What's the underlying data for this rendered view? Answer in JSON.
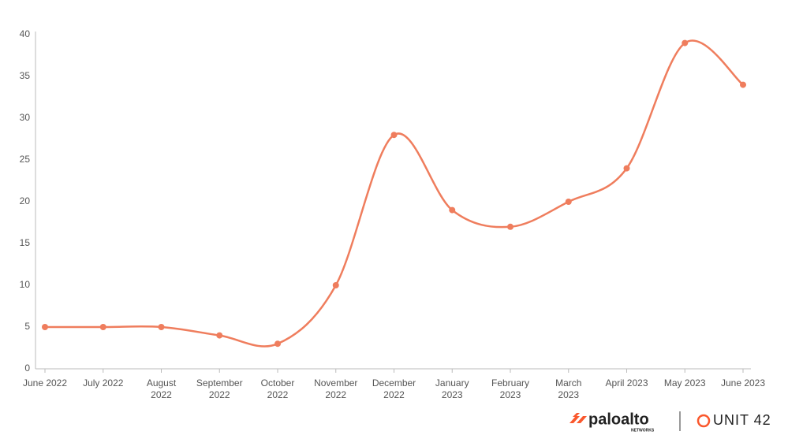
{
  "chart_data": {
    "type": "line",
    "categories": [
      "June 2022",
      "July 2022",
      "August 2022",
      "September 2022",
      "October 2022",
      "November 2022",
      "December 2022",
      "January 2023",
      "February 2023",
      "March 2023",
      "April 2023",
      "May 2023",
      "June 2023"
    ],
    "values": [
      5,
      5,
      5,
      4,
      3,
      10,
      28,
      19,
      17,
      20,
      24,
      39,
      34
    ],
    "color": "#ef7d5d",
    "ylim": [
      0,
      40
    ],
    "yticks": [
      0,
      5,
      10,
      15,
      20,
      25,
      30,
      35,
      40
    ],
    "grid": false,
    "smooth": true
  },
  "footer": {
    "brand": "paloalto",
    "brand_sub": "NETWORKS",
    "unit": "UNIT 42"
  }
}
